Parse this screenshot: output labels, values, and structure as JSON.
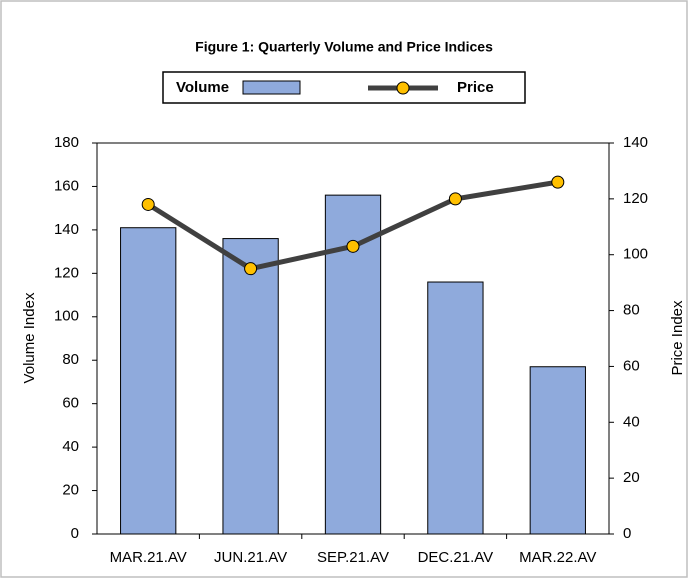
{
  "chart_data": {
    "type": "bar-line",
    "title": "Figure 1: Quarterly Volume and Price Indices",
    "categories": [
      "MAR.21.AV",
      "JUN.21.AV",
      "SEP.21.AV",
      "DEC.21.AV",
      "MAR.22.AV"
    ],
    "series": [
      {
        "name": "Volume",
        "type": "bar",
        "color": "#8faadc",
        "values": [
          141,
          136,
          156,
          116,
          77
        ]
      },
      {
        "name": "Price",
        "type": "line",
        "axis": "y2",
        "color": "#404040",
        "marker_color": "#ffc000",
        "values": [
          118,
          95,
          103,
          120,
          126
        ]
      }
    ],
    "ylabel": "Volume Index",
    "y2label": "Price Index",
    "ylim": [
      0,
      180
    ],
    "yticks": [
      0,
      20,
      40,
      60,
      80,
      100,
      120,
      140,
      160,
      180
    ],
    "y2lim": [
      0,
      140
    ],
    "y2ticks": [
      0,
      20,
      40,
      60,
      80,
      100,
      120,
      140
    ],
    "grid": false,
    "legend": "top"
  }
}
